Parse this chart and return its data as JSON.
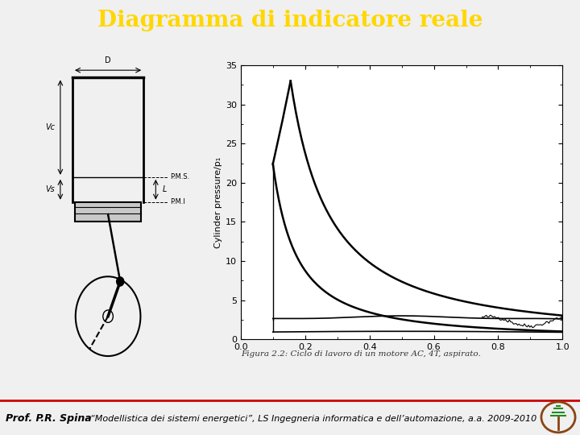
{
  "title": "Diagramma di indicatore reale",
  "title_bg": "#000080",
  "title_color": "#FFD700",
  "title_fontsize": 20,
  "footer_left": "Prof. P.R. Spina",
  "footer_right": "“Modellistica dei sistemi energetici”, LS Ingegneria informatica e dell’automazione, a.a. 2009-2010",
  "footer_bg": "#E0E0E0",
  "footer_color": "#000000",
  "footer_fontsize": 8,
  "caption": "Figura 2.2: Ciclo di lavoro di un motore AC, 4T, aspirato.",
  "main_bg": "#F0F0F0",
  "plot_bg": "#FFFFFF",
  "red_line_color": "#CC0000"
}
